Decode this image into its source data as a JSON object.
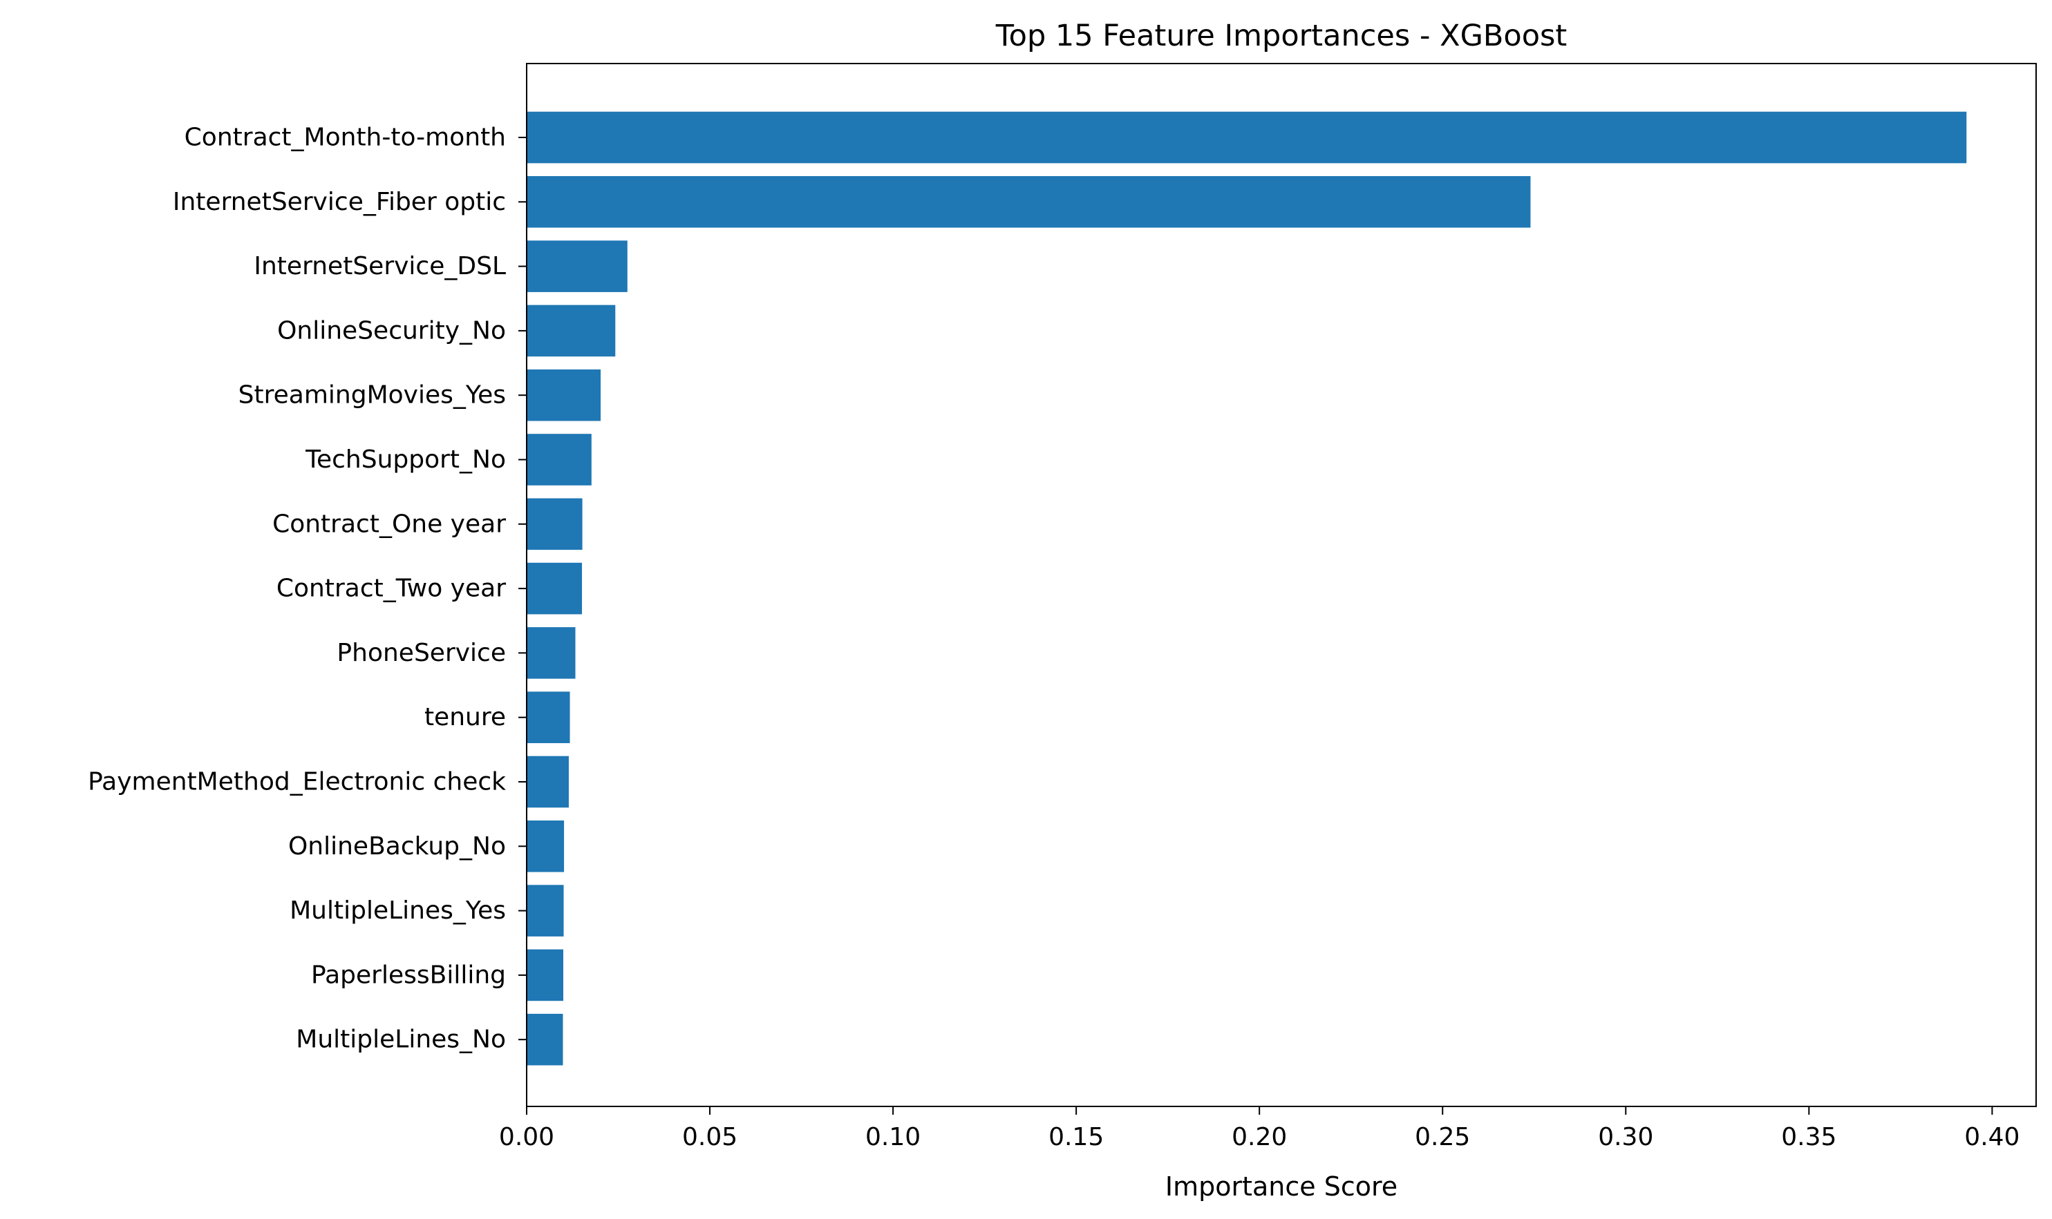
{
  "chart_data": {
    "type": "bar",
    "orientation": "horizontal",
    "title": "Top 15 Feature Importances - XGBoost",
    "xlabel": "Importance Score",
    "ylabel": "",
    "xlim": [
      0,
      0.412
    ],
    "xticks": [
      0.0,
      0.05,
      0.1,
      0.15,
      0.2,
      0.25,
      0.3,
      0.35,
      0.4
    ],
    "xtick_labels": [
      "0.00",
      "0.05",
      "0.10",
      "0.15",
      "0.20",
      "0.25",
      "0.30",
      "0.35",
      "0.40"
    ],
    "grid": false,
    "bar_color": "#1f77b4",
    "categories": [
      "Contract_Month-to-month",
      "InternetService_Fiber optic",
      "InternetService_DSL",
      "OnlineSecurity_No",
      "StreamingMovies_Yes",
      "TechSupport_No",
      "Contract_One year",
      "Contract_Two year",
      "PhoneService",
      "tenure",
      "PaymentMethod_Electronic check",
      "OnlineBackup_No",
      "MultipleLines_Yes",
      "PaperlessBilling",
      "MultipleLines_No"
    ],
    "values": [
      0.393,
      0.274,
      0.0275,
      0.0242,
      0.0202,
      0.0177,
      0.0152,
      0.0151,
      0.0133,
      0.0118,
      0.0115,
      0.0102,
      0.0101,
      0.01,
      0.0099
    ]
  }
}
